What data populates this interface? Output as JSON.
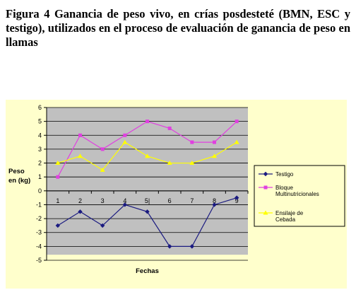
{
  "caption": "Figura 4 Ganancia de peso vivo, en crías posdesteté (BMN, ESC y testigo), utilizados en el proceso de evaluación de ganancia de peso en llamas",
  "chart_data": {
    "type": "line",
    "title": "",
    "xlabel": "Fechas",
    "ylabel_lines": [
      "Peso",
      "en (kg)"
    ],
    "categories": [
      "1",
      "2",
      "3",
      "4",
      "5",
      "6",
      "7",
      "8",
      "9"
    ],
    "category_labels": [
      "1",
      "2",
      "3",
      "4",
      "5|",
      "6",
      "7",
      "8",
      "9"
    ],
    "ylim": [
      -5,
      6
    ],
    "yticks": [
      "-5",
      "-4",
      "-3",
      "-2",
      "-1",
      "0",
      "1",
      "2",
      "3",
      "4",
      "5",
      "6"
    ],
    "grid": true,
    "legend_position": "right",
    "series": [
      {
        "name": "Testigo",
        "color": "#1a1a80",
        "marker": "diamond",
        "values": [
          -2.5,
          -1.5,
          -2.5,
          -1,
          -1.5,
          -4,
          -4,
          -1,
          -0.5
        ]
      },
      {
        "name": "Bloque Multinutricionales",
        "name_lines": [
          "Bloque",
          "Multinutricionales"
        ],
        "color": "#e040e0",
        "marker": "square",
        "values": [
          1,
          4,
          3,
          4,
          5,
          4.5,
          3.5,
          3.5,
          5
        ]
      },
      {
        "name": "Ensilaje de Cebada",
        "name_lines": [
          "Ensilaje de",
          "Cebada"
        ],
        "color": "#ffff00",
        "marker": "triangle",
        "values": [
          2,
          2.5,
          1.5,
          3.5,
          2.5,
          2,
          2,
          2.5,
          3.5
        ]
      }
    ]
  }
}
